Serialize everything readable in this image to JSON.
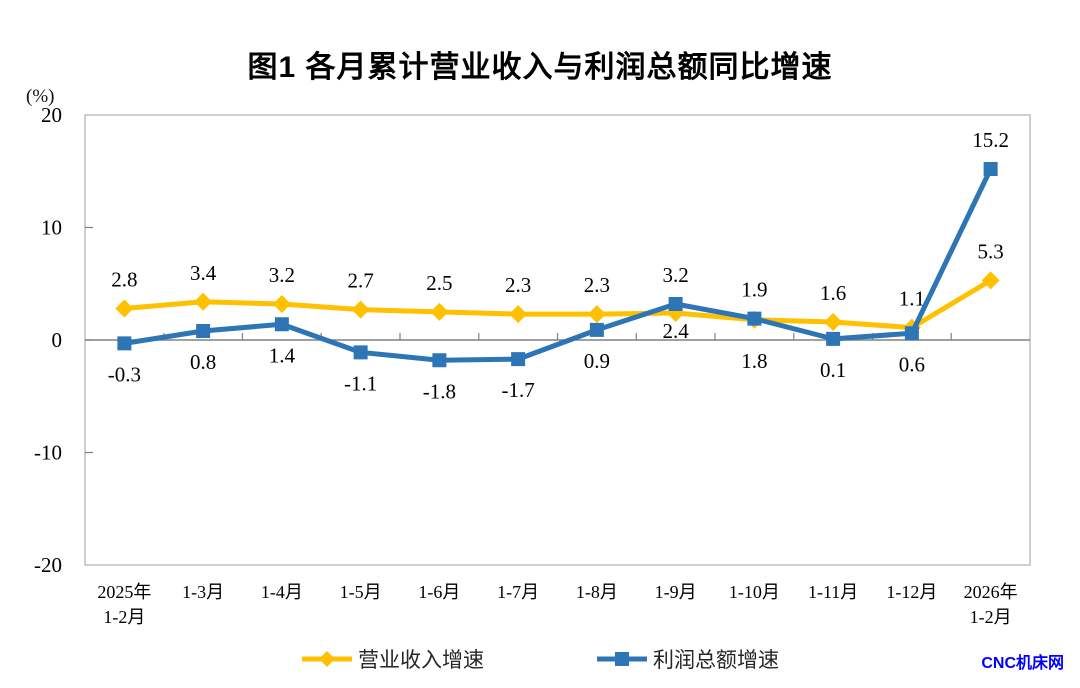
{
  "title": "图1  各月累计营业收入与利润总额同比增速",
  "unit_label": "(%)",
  "watermark": "CNC机床网",
  "colors": {
    "revenue_line": "#FFC000",
    "profit_line": "#2E75B6",
    "zero_axis": "#808080",
    "plot_border": "#BFBFBF",
    "watermark_text": "#0000FF"
  },
  "chart_data": {
    "type": "line",
    "title": "图1  各月累计营业收入与利润总额同比增速",
    "unit": "(%)",
    "categories": [
      "2025年\n1-2月",
      "1-3月",
      "1-4月",
      "1-5月",
      "1-6月",
      "1-7月",
      "1-8月",
      "1-9月",
      "1-10月",
      "1-11月",
      "1-12月",
      "2026年\n1-2月"
    ],
    "series": [
      {
        "name": "营业收入增速",
        "marker": "diamond",
        "color": "#FFC000",
        "values": [
          2.8,
          3.4,
          3.2,
          2.7,
          2.5,
          2.3,
          2.3,
          2.4,
          1.8,
          1.6,
          1.1,
          5.3
        ],
        "label_pos": [
          "above",
          "above",
          "above",
          "above",
          "above",
          "above",
          "above",
          "below",
          "below",
          "above",
          "above",
          "above"
        ]
      },
      {
        "name": "利润总额增速",
        "marker": "square",
        "color": "#2E75B6",
        "values": [
          -0.3,
          0.8,
          1.4,
          -1.1,
          -1.8,
          -1.7,
          0.9,
          3.2,
          1.9,
          0.1,
          0.6,
          15.2
        ],
        "label_pos": [
          "below",
          "below",
          "below",
          "below",
          "below",
          "below",
          "below",
          "above",
          "above",
          "below",
          "below",
          "above"
        ]
      }
    ],
    "ylim": [
      -20,
      20
    ],
    "yticks": [
      20,
      10,
      0,
      -10,
      -20
    ],
    "grid": false,
    "legend_position": "bottom"
  }
}
